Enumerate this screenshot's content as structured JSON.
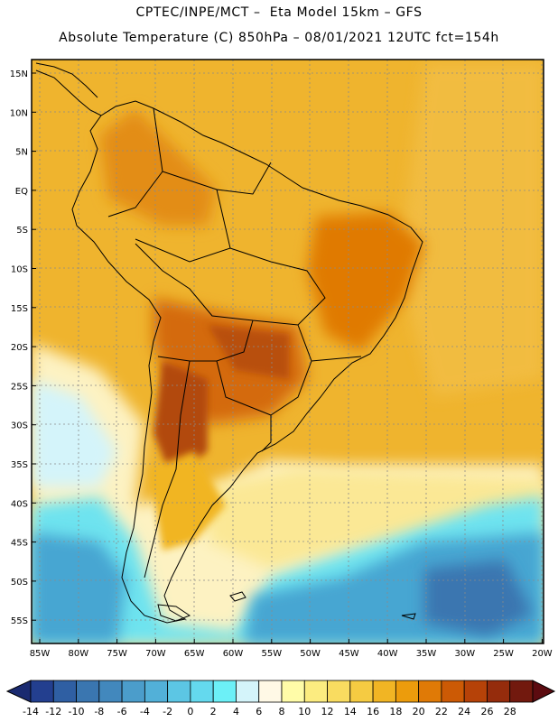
{
  "header": {
    "line1": "CPTEC/INPE/MCT –  Eta Model 15km – GFS",
    "line2": "Absolute Temperature (C) 850hPa – 08/01/2021 12UTC fct=154h"
  },
  "map": {
    "lat_labels": [
      "15N",
      "10N",
      "5N",
      "EQ",
      "5S",
      "10S",
      "15S",
      "20S",
      "25S",
      "30S",
      "35S",
      "40S",
      "45S",
      "50S",
      "55S"
    ],
    "lon_labels": [
      "85W",
      "80W",
      "75W",
      "70W",
      "65W",
      "60W",
      "55W",
      "50W",
      "45W",
      "40W",
      "35W",
      "30W",
      "25W",
      "20W"
    ]
  },
  "colorbar": {
    "labels": [
      "-14",
      "-12",
      "-10",
      "-8",
      "-6",
      "-4",
      "-2",
      "0",
      "2",
      "4",
      "6",
      "8",
      "10",
      "12",
      "14",
      "16",
      "18",
      "20",
      "22",
      "24",
      "26",
      "28"
    ],
    "colors": [
      "#233f8f",
      "#2f5fa3",
      "#3a76b0",
      "#4288bd",
      "#4b9dcb",
      "#52b0d8",
      "#5cc6e4",
      "#64d9ee",
      "#6cf0f7",
      "#d4f4fa",
      "#fff9e6",
      "#fffca8",
      "#fcec80",
      "#f9dc60",
      "#f5cb42",
      "#f1b524",
      "#ec9c0c",
      "#e07a06",
      "#cc5a05",
      "#b64208",
      "#952c0c",
      "#72190e"
    ],
    "low_arrow_color": "#1a2a70",
    "high_arrow_color": "#5c0b10"
  },
  "palette": {
    "background_warm": "#efb42e",
    "ocean_warm": "#f3c04a",
    "land_hot": "#d46a0c",
    "land_very_hot": "#b24a10",
    "pale_cream": "#fdf2c2",
    "pale_yellow": "#fbe895",
    "cold_cyan": "#6ee3ef",
    "cold_blue": "#46a6d2",
    "coast_line": "#000000"
  }
}
